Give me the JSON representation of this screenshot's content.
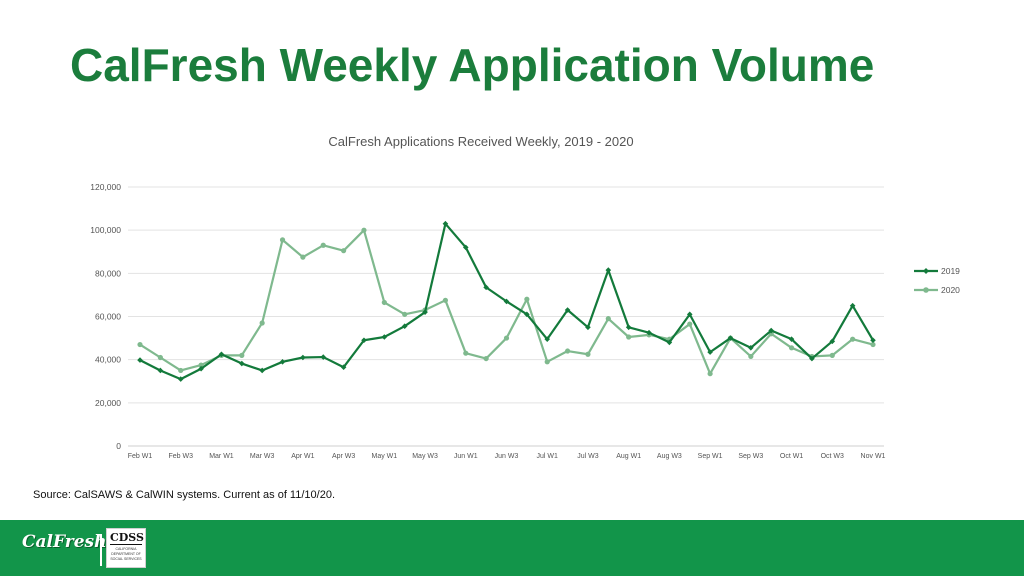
{
  "slide": {
    "title": "CalFresh Weekly Application Volume",
    "source": "Source:  CalSAWS & CalWIN systems.  Current as of 11/10/20."
  },
  "footer": {
    "logo_text": "CalFresh",
    "cdss_text": "CDSS",
    "cdss_subtext": "CALIFORNIA DEPARTMENT OF SOCIAL SERVICES",
    "bar_color": "#12954a"
  },
  "chart_data": {
    "type": "line",
    "title": "CalFresh Applications Received Weekly, 2019 - 2020",
    "xlabel": "",
    "ylabel": "",
    "ylim": [
      0,
      120000
    ],
    "yticks": [
      0,
      20000,
      40000,
      60000,
      80000,
      100000,
      120000
    ],
    "ytick_labels": [
      "0",
      "20,000",
      "40,000",
      "60,000",
      "80,000",
      "100,000",
      "120,000"
    ],
    "grid": true,
    "legend_position": "right",
    "categories": [
      "Feb W1",
      "Feb W2",
      "Feb W3",
      "Feb W4",
      "Mar W1",
      "Mar W2",
      "Mar W3",
      "Mar W4",
      "Apr W1",
      "Apr W2",
      "Apr W3",
      "Apr W4",
      "May W1",
      "May W2",
      "May W3",
      "May W4",
      "Jun W1",
      "Jun W2",
      "Jun W3",
      "Jun W4",
      "Jul W1",
      "Jul W2",
      "Jul W3",
      "Jul W4",
      "Aug W1",
      "Aug W2",
      "Aug W3",
      "Aug W4",
      "Sep W1",
      "Sep W2",
      "Sep W3",
      "Sep W4",
      "Oct W1",
      "Oct W2",
      "Oct W3",
      "Oct W4",
      "Nov W1"
    ],
    "tick_labels": [
      "Feb W1",
      "Feb W3",
      "Mar W1",
      "Mar W3",
      "Apr W1",
      "Apr W3",
      "May W1",
      "May W3",
      "Jun W1",
      "Jun W3",
      "Jul W1",
      "Jul W3",
      "Aug W1",
      "Aug W3",
      "Sep W1",
      "Sep W3",
      "Oct W1",
      "Oct W3",
      "Nov W1"
    ],
    "series": [
      {
        "name": "2019",
        "color": "#137a3b",
        "marker": "diamond",
        "values": [
          39800,
          35000,
          31000,
          35800,
          42500,
          38200,
          35000,
          39000,
          41000,
          41200,
          36500,
          49000,
          50500,
          55500,
          62000,
          103000,
          92000,
          73500,
          67000,
          61000,
          49500,
          63000,
          55000,
          81500,
          55000,
          52500,
          48000,
          61000,
          43500,
          50000,
          45500,
          53500,
          49500,
          40500,
          48500,
          65000,
          49000
        ]
      },
      {
        "name": "2020",
        "color": "#7fb98e",
        "marker": "circle",
        "values": [
          47000,
          41000,
          35000,
          37500,
          42000,
          42000,
          57000,
          95500,
          87500,
          93000,
          90500,
          100000,
          66500,
          61000,
          63000,
          67500,
          43000,
          40500,
          50000,
          68000,
          39000,
          44000,
          42500,
          59000,
          50500,
          51500,
          49500,
          56500,
          33500,
          50000,
          41500,
          52000,
          45500,
          41500,
          42000,
          49500,
          47000
        ]
      }
    ]
  }
}
